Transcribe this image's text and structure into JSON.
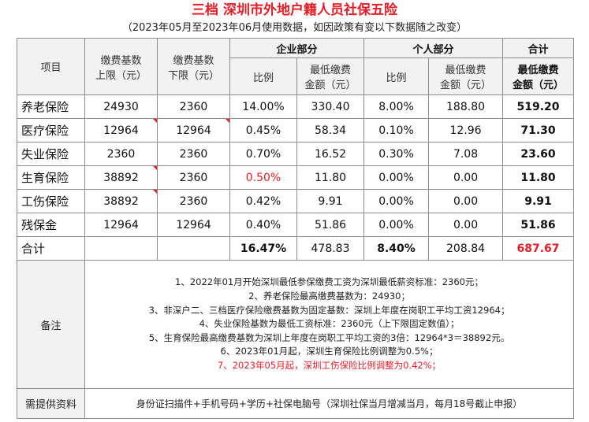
{
  "title": "三档 深圳市外地户籍人员社保五险",
  "subtitle": "（2023年05月至2023年06月使用数据，如因政策有变以下数据随之改变）",
  "header": {
    "item": "项目",
    "base_upper": [
      "缴费基数",
      "上限（元）"
    ],
    "base_lower": [
      "缴费基数",
      "下限（元）"
    ],
    "company": "企业部分",
    "personal": "个人部分",
    "total": "合计",
    "ratio": "比例",
    "min_amount": [
      "最低缴费",
      "金额（元）"
    ],
    "total_min": [
      "最低缴费",
      "金额（元）"
    ]
  },
  "rows": [
    {
      "name": "养老保险",
      "upper": "24930",
      "lower": "2360",
      "c_ratio": "14.00%",
      "c_amt": "330.40",
      "p_ratio": "8.00%",
      "p_amt": "188.80",
      "total": "519.20"
    },
    {
      "name": "医疗保险",
      "upper": "12964",
      "lower": "12964",
      "c_ratio": "0.45%",
      "c_amt": "58.34",
      "p_ratio": "0.10%",
      "p_amt": "12.96",
      "total": "71.30"
    },
    {
      "name": "失业保险",
      "upper": "2360",
      "lower": "2360",
      "c_ratio": "0.70%",
      "c_amt": "16.52",
      "p_ratio": "0.30%",
      "p_amt": "7.08",
      "total": "23.60"
    },
    {
      "name": "生育保险",
      "upper": "38892",
      "lower": "2360",
      "c_ratio": "0.50%",
      "c_amt": "11.80",
      "p_ratio": "0.00%",
      "p_amt": "0.00",
      "total": "11.80"
    },
    {
      "name": "工伤保险",
      "upper": "38892",
      "lower": "2360",
      "c_ratio": "0.42%",
      "c_amt": "9.91",
      "p_ratio": "0.00%",
      "p_amt": "0.00",
      "total": "9.91"
    },
    {
      "name": "残保金",
      "upper": "12964",
      "lower": "12964",
      "c_ratio": "0.40%",
      "c_amt": "51.86",
      "p_ratio": "0.00%",
      "p_amt": "0.00",
      "total": "51.86"
    }
  ],
  "summary": {
    "name": "合计",
    "c_ratio": "16.47%",
    "c_amt": "478.83",
    "p_ratio": "8.40%",
    "p_amt": "208.84",
    "total": "687.67"
  },
  "notes_label": "备注",
  "notes": [
    "1、2022年01月开始深圳最低参保缴费工资为深圳最低薪资标准：2360元；",
    "2、养老保险最高缴费基数为：24930；",
    "3、非深户二、三档医疗保险缴费基数为固定基数：深圳上年度在岗职工平均工资12964；",
    "4、失业保险基数为最低工资标准：2360元（上下限固定数值）；",
    "5、生育保险最高缴费基数为深圳上年度在岗职工平均工资的3倍：12964*3＝38892元。",
    "6、2023年01月起，深圳生育保险比例调整为0.5%；",
    "7、2023年05月起，深圳工伤保险比例调整为0.42%；"
  ],
  "requirements_label": "需提供资料",
  "requirements": "身份证扫描件+手机号码+学历+社保电脑号（深圳社保当月增减当月，每月18号截止申报）",
  "colors": {
    "accent_red": "#e41e26",
    "header_bg": "#f2f2f2",
    "border": "#8d8d8d"
  }
}
